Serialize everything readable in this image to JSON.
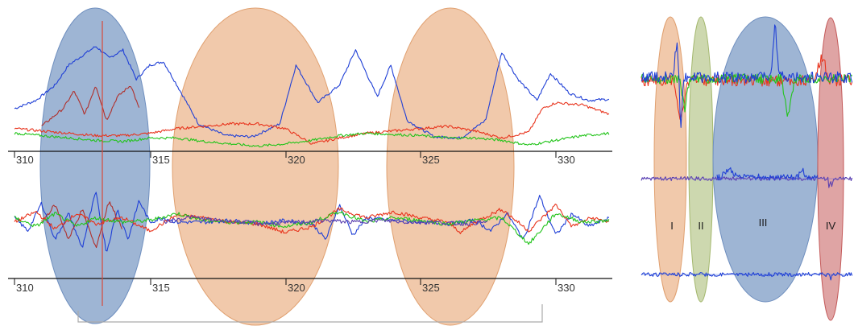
{
  "colors": {
    "blue_trace": "#1f3fd6",
    "red_trace": "#e8331c",
    "green_trace": "#22c41a",
    "darkred_trace": "#b0302c",
    "purple_trace": "#5a3fb0",
    "blue_region": "#4f78b0",
    "orange_region": "#e59c66",
    "olive_region": "#a4b86e",
    "red_region": "#c45a5a",
    "marker_line": "#d84a3a",
    "bracket": "#aaaaaa"
  },
  "chart_data": [
    {
      "type": "line",
      "panel": "left-top",
      "x_ticks": [
        "310",
        "315",
        "320",
        "325",
        "330"
      ],
      "xlim": [
        310,
        332
      ],
      "series": [
        {
          "color": "blue",
          "anchors": [
            [
              310.0,
              0.35
            ],
            [
              310.8,
              0.42
            ],
            [
              311.5,
              0.55
            ],
            [
              312.0,
              0.72
            ],
            [
              312.5,
              0.8
            ],
            [
              313.0,
              0.88
            ],
            [
              313.5,
              0.78
            ],
            [
              314.0,
              0.85
            ],
            [
              314.5,
              0.6
            ],
            [
              315.0,
              0.72
            ],
            [
              315.5,
              0.75
            ],
            [
              316.0,
              0.55
            ],
            [
              316.8,
              0.22
            ],
            [
              317.8,
              0.12
            ],
            [
              318.8,
              0.11
            ],
            [
              319.8,
              0.22
            ],
            [
              320.4,
              0.72
            ],
            [
              321.2,
              0.4
            ],
            [
              322.0,
              0.55
            ],
            [
              322.6,
              0.85
            ],
            [
              323.4,
              0.45
            ],
            [
              323.9,
              0.72
            ],
            [
              324.5,
              0.25
            ],
            [
              325.5,
              0.11
            ],
            [
              326.5,
              0.1
            ],
            [
              327.4,
              0.25
            ],
            [
              328.0,
              0.83
            ],
            [
              328.6,
              0.6
            ],
            [
              329.3,
              0.42
            ],
            [
              329.8,
              0.65
            ],
            [
              330.5,
              0.48
            ],
            [
              331.2,
              0.42
            ],
            [
              332.0,
              0.43
            ]
          ]
        },
        {
          "color": "darkred",
          "anchors": [
            [
              311.0,
              0.2
            ],
            [
              311.8,
              0.35
            ],
            [
              312.2,
              0.5
            ],
            [
              312.6,
              0.3
            ],
            [
              313.0,
              0.55
            ],
            [
              313.4,
              0.25
            ],
            [
              313.8,
              0.45
            ],
            [
              314.3,
              0.55
            ],
            [
              314.6,
              0.35
            ]
          ]
        },
        {
          "color": "red",
          "anchors": [
            [
              310.0,
              0.18
            ],
            [
              311.0,
              0.16
            ],
            [
              312.0,
              0.14
            ],
            [
              313.0,
              0.12
            ],
            [
              314.0,
              0.12
            ],
            [
              315.0,
              0.14
            ],
            [
              316.0,
              0.18
            ],
            [
              317.0,
              0.2
            ],
            [
              318.0,
              0.22
            ],
            [
              319.0,
              0.22
            ],
            [
              320.0,
              0.18
            ],
            [
              321.0,
              0.05
            ],
            [
              322.0,
              0.1
            ],
            [
              323.0,
              0.14
            ],
            [
              324.0,
              0.16
            ],
            [
              325.0,
              0.18
            ],
            [
              326.0,
              0.2
            ],
            [
              327.0,
              0.16
            ],
            [
              328.0,
              0.1
            ],
            [
              329.0,
              0.15
            ],
            [
              329.5,
              0.35
            ],
            [
              330.0,
              0.4
            ],
            [
              331.0,
              0.38
            ],
            [
              332.0,
              0.3
            ]
          ]
        },
        {
          "color": "green",
          "anchors": [
            [
              310.0,
              0.14
            ],
            [
              311.0,
              0.12
            ],
            [
              312.0,
              0.1
            ],
            [
              313.0,
              0.08
            ],
            [
              314.0,
              0.07
            ],
            [
              315.0,
              0.1
            ],
            [
              316.0,
              0.1
            ],
            [
              317.0,
              0.07
            ],
            [
              318.0,
              0.05
            ],
            [
              319.0,
              0.03
            ],
            [
              320.0,
              0.05
            ],
            [
              321.0,
              0.08
            ],
            [
              322.0,
              0.12
            ],
            [
              323.0,
              0.14
            ],
            [
              324.0,
              0.13
            ],
            [
              325.0,
              0.12
            ],
            [
              326.0,
              0.1
            ],
            [
              327.0,
              0.1
            ],
            [
              328.0,
              0.08
            ],
            [
              329.0,
              0.04
            ],
            [
              330.0,
              0.08
            ],
            [
              331.0,
              0.12
            ],
            [
              332.0,
              0.14
            ]
          ]
        }
      ]
    },
    {
      "type": "line",
      "panel": "left-bottom",
      "x_ticks": [
        "310",
        "315",
        "320",
        "325",
        "330"
      ],
      "xlim": [
        310,
        332
      ],
      "series": [
        {
          "color": "blue",
          "anchors": [
            [
              310.0,
              0.55
            ],
            [
              310.5,
              0.4
            ],
            [
              311.0,
              0.72
            ],
            [
              311.5,
              0.3
            ],
            [
              312.0,
              0.6
            ],
            [
              312.5,
              0.2
            ],
            [
              313.0,
              0.85
            ],
            [
              313.4,
              0.15
            ],
            [
              313.8,
              0.65
            ],
            [
              314.2,
              0.3
            ],
            [
              314.6,
              0.75
            ],
            [
              315.0,
              0.5
            ],
            [
              315.5,
              0.55
            ],
            [
              316.0,
              0.5
            ],
            [
              317.0,
              0.5
            ],
            [
              318.0,
              0.52
            ],
            [
              319.0,
              0.48
            ],
            [
              320.0,
              0.52
            ],
            [
              321.0,
              0.48
            ],
            [
              321.5,
              0.3
            ],
            [
              322.0,
              0.7
            ],
            [
              322.5,
              0.35
            ],
            [
              323.0,
              0.55
            ],
            [
              324.0,
              0.52
            ],
            [
              325.0,
              0.5
            ],
            [
              326.0,
              0.48
            ],
            [
              327.0,
              0.52
            ],
            [
              327.6,
              0.4
            ],
            [
              328.2,
              0.6
            ],
            [
              328.8,
              0.3
            ],
            [
              329.4,
              0.8
            ],
            [
              330.0,
              0.35
            ],
            [
              330.6,
              0.6
            ],
            [
              331.2,
              0.45
            ],
            [
              332.0,
              0.55
            ]
          ]
        },
        {
          "color": "darkred",
          "anchors": [
            [
              311.0,
              0.5
            ],
            [
              311.5,
              0.7
            ],
            [
              312.0,
              0.3
            ],
            [
              312.5,
              0.65
            ],
            [
              313.0,
              0.2
            ],
            [
              313.5,
              0.75
            ],
            [
              314.0,
              0.4
            ]
          ]
        },
        {
          "color": "red",
          "anchors": [
            [
              310.0,
              0.5
            ],
            [
              310.8,
              0.62
            ],
            [
              311.5,
              0.42
            ],
            [
              312.3,
              0.6
            ],
            [
              313.0,
              0.48
            ],
            [
              314.0,
              0.55
            ],
            [
              315.0,
              0.4
            ],
            [
              316.0,
              0.58
            ],
            [
              317.0,
              0.55
            ],
            [
              318.0,
              0.5
            ],
            [
              319.0,
              0.48
            ],
            [
              320.0,
              0.38
            ],
            [
              321.0,
              0.45
            ],
            [
              322.0,
              0.65
            ],
            [
              323.0,
              0.55
            ],
            [
              324.0,
              0.62
            ],
            [
              325.0,
              0.55
            ],
            [
              326.0,
              0.5
            ],
            [
              326.5,
              0.38
            ],
            [
              327.0,
              0.5
            ],
            [
              328.0,
              0.65
            ],
            [
              329.0,
              0.4
            ],
            [
              330.0,
              0.7
            ],
            [
              330.6,
              0.45
            ],
            [
              331.3,
              0.55
            ],
            [
              332.0,
              0.5
            ]
          ]
        },
        {
          "color": "green",
          "anchors": [
            [
              310.0,
              0.55
            ],
            [
              310.8,
              0.45
            ],
            [
              311.5,
              0.6
            ],
            [
              312.3,
              0.45
            ],
            [
              313.0,
              0.55
            ],
            [
              314.0,
              0.5
            ],
            [
              315.0,
              0.52
            ],
            [
              316.0,
              0.6
            ],
            [
              317.0,
              0.52
            ],
            [
              318.0,
              0.5
            ],
            [
              319.0,
              0.5
            ],
            [
              320.0,
              0.45
            ],
            [
              321.0,
              0.5
            ],
            [
              322.0,
              0.62
            ],
            [
              323.0,
              0.5
            ],
            [
              324.0,
              0.55
            ],
            [
              325.0,
              0.52
            ],
            [
              326.0,
              0.48
            ],
            [
              327.0,
              0.52
            ],
            [
              328.0,
              0.55
            ],
            [
              329.0,
              0.25
            ],
            [
              330.0,
              0.6
            ],
            [
              331.0,
              0.5
            ],
            [
              332.0,
              0.52
            ]
          ]
        },
        {
          "color": "purple",
          "anchors": [
            [
              315.5,
              0.5
            ],
            [
              316.5,
              0.56
            ],
            [
              317.5,
              0.52
            ],
            [
              318.5,
              0.5
            ],
            [
              319.5,
              0.48
            ],
            [
              320.5,
              0.5
            ],
            [
              321.5,
              0.52
            ],
            [
              322.5,
              0.5
            ],
            [
              323.5,
              0.52
            ],
            [
              324.5,
              0.5
            ],
            [
              325.5,
              0.5
            ],
            [
              326.5,
              0.48
            ],
            [
              327.5,
              0.5
            ]
          ]
        }
      ]
    },
    {
      "type": "line",
      "panel": "right",
      "region_labels": [
        "I",
        "II",
        "III",
        "IV"
      ]
    }
  ]
}
